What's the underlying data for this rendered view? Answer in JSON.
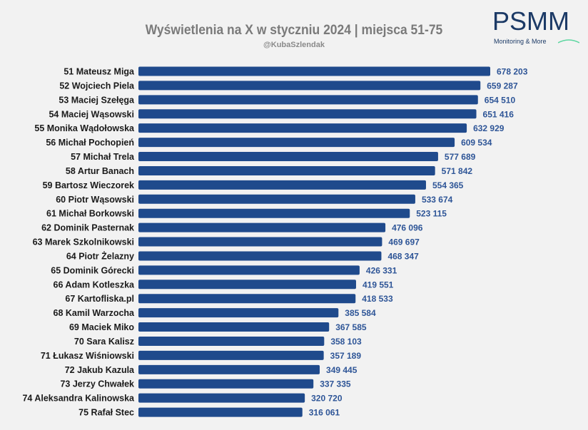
{
  "chart_data": {
    "type": "bar",
    "orientation": "horizontal",
    "title": "Wyświetlenia na X w styczniu 2024 | miejsca 51-75",
    "subtitle": "@KubaSzlendak",
    "xlabel": "",
    "ylabel": "",
    "grid": false,
    "bar_color": "#1f4a8c",
    "value_label_color": "#2e5597",
    "categories": [
      "51 Mateusz Miga",
      "52 Wojciech Piela",
      "53 Maciej Szełęga",
      "54 Maciej Wąsowski",
      "55 Monika Wądołowska",
      "56 Michał Pochopień",
      "57 Michał Trela",
      "58 Artur Banach",
      "59 Bartosz Wieczorek",
      "60 Piotr Wąsowski",
      "61 Michał Borkowski",
      "62 Dominik Pasternak",
      "63 Marek Szkolnikowski",
      "64 Piotr Żelazny",
      "65 Dominik Górecki",
      "66 Adam Kotleszka",
      "67 Kartofliska.pl",
      "68 Kamil Warzocha",
      "69 Maciek Miko",
      "70 Sara Kalisz",
      "71 Łukasz Wiśniowski",
      "72 Jakub Kazula",
      "73 Jerzy Chwałek",
      "74 Aleksandra Kalinowska",
      "75 Rafał Stec"
    ],
    "values": [
      678203,
      659287,
      654510,
      651416,
      632929,
      609534,
      577689,
      571842,
      554365,
      533674,
      523115,
      476096,
      469697,
      468347,
      426331,
      419551,
      418533,
      385584,
      367585,
      358103,
      357189,
      349445,
      337335,
      320720,
      316061
    ],
    "value_labels": [
      "678 203",
      "659 287",
      "654 510",
      "651 416",
      "632 929",
      "609 534",
      "577 689",
      "571 842",
      "554 365",
      "533 674",
      "523 115",
      "476 096",
      "469 697",
      "468 347",
      "426 331",
      "419 551",
      "418 533",
      "385 584",
      "367 585",
      "358 103",
      "357 189",
      "349 445",
      "337 335",
      "320 720",
      "316 061"
    ]
  },
  "logo": {
    "name": "PSMM",
    "tagline": "Monitoring & More",
    "color": "#1c3a66",
    "accent": "#5cd6a0"
  }
}
